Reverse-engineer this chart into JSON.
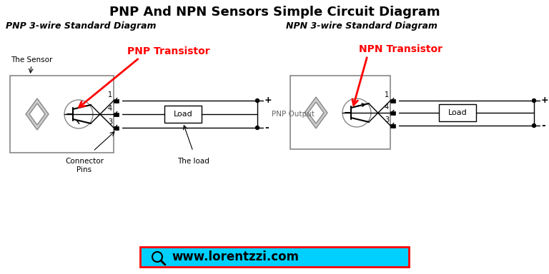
{
  "title": "PNP And NPN Sensors Simple Circuit Diagram",
  "title_fontsize": 13,
  "title_fontweight": "bold",
  "pnp_subtitle": "PNP 3-wire Standard Diagram",
  "npn_subtitle": "NPN 3-wire Standard Diagram",
  "subtitle_fontsize": 9,
  "pnp_transistor_label": "PNP Transistor",
  "npn_transistor_label": "NPN Transistor",
  "transistor_label_color": "#ff0000",
  "transistor_label_fontsize": 10,
  "sensor_label": "The Sensor",
  "connector_label": "Connector\nPins",
  "load_label": "The load",
  "pnp_output_label": "PNP Output",
  "small_label_fontsize": 7,
  "background_color": "#ffffff",
  "line_color": "#000000",
  "website_text": "www.lorentzzi.com",
  "website_bg": "#00d0ff",
  "website_border": "#ff0000"
}
